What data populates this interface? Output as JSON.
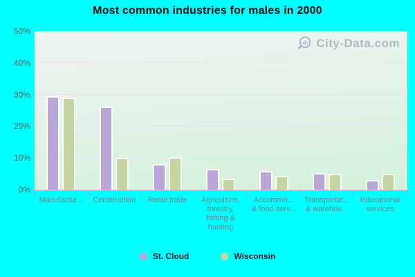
{
  "title": "Most common industries for males in 2000",
  "watermark": "City-Data.com",
  "legend": [
    {
      "label": "St. Cloud",
      "color": "#b9a6d9"
    },
    {
      "label": "Wisconsin",
      "color": "#c5d5a2"
    }
  ],
  "colors": {
    "page_background": "#00ffff",
    "st_cloud_bar": "#b9a6d9",
    "wisconsin_bar": "#c5d5a2",
    "plot_top": "#eef4f1",
    "plot_bottom": "#d2f1da",
    "gridline": "#e7e3ed",
    "axis_label": "#7c7c88"
  },
  "chart_data": {
    "type": "bar",
    "title": "Most common industries for males in 2000",
    "categories": [
      "Manufacturing",
      "Construction",
      "Retail trade",
      "Agriculture, forestry, fishing & hunting",
      "Accommodation & food services",
      "Transportation & warehousing",
      "Educational services"
    ],
    "category_display": [
      "Manufactur...",
      "Construction",
      "Retail trade",
      "Agriculture,\nforestry,\nfishing &\nhunting",
      "Accommo...\n& food serv...",
      "Transportat...\n& warehou...",
      "Educational\nservices"
    ],
    "series": [
      {
        "name": "St. Cloud",
        "color": "#b9a6d9",
        "values": [
          29.5,
          26.1,
          8.1,
          6.6,
          5.8,
          5.2,
          3.1
        ]
      },
      {
        "name": "Wisconsin",
        "color": "#c5d5a2",
        "values": [
          29.0,
          10.1,
          10.3,
          3.6,
          4.3,
          5.0,
          5.0
        ]
      }
    ],
    "xlabel": "",
    "ylabel": "",
    "ylim": [
      0,
      50
    ],
    "yticks": [
      0,
      10,
      20,
      30,
      40,
      50
    ],
    "ytick_labels": [
      "0%",
      "10%",
      "20%",
      "30%",
      "40%",
      "50%"
    ],
    "grid": true,
    "legend_position": "bottom"
  }
}
